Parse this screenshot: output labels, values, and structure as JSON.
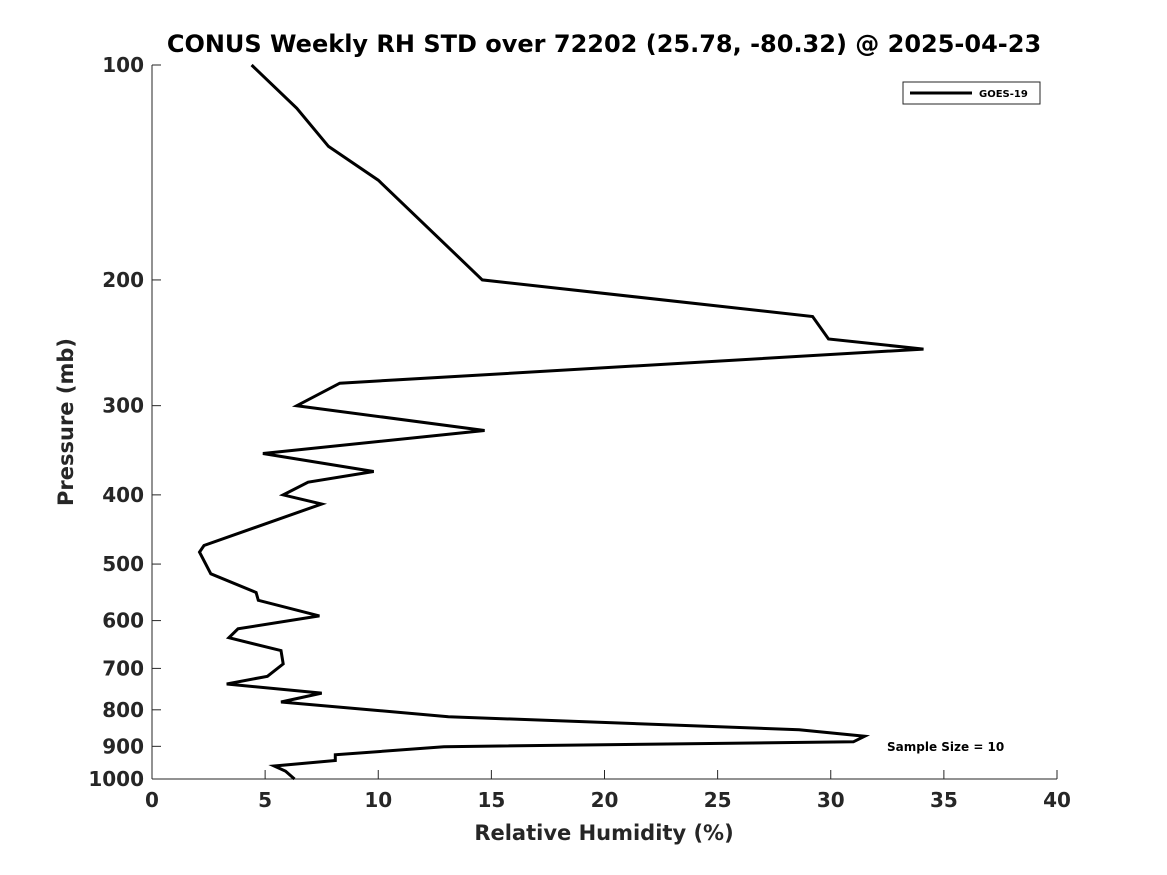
{
  "chart_data": {
    "type": "line",
    "title": "CONUS Weekly RH STD over 72202 (25.78, -80.32) @ 2025-04-23",
    "xlabel": "Relative Humidity (%)",
    "ylabel": "Pressure (mb)",
    "xlim": [
      0,
      40
    ],
    "ylim": [
      1000,
      100
    ],
    "yscale": "log",
    "xticks": [
      0,
      5,
      10,
      15,
      20,
      25,
      30,
      35,
      40
    ],
    "xtick_labels": [
      "0",
      "5",
      "10",
      "15",
      "20",
      "25",
      "30",
      "35",
      "40"
    ],
    "yticks": [
      100,
      200,
      300,
      400,
      500,
      600,
      700,
      800,
      900,
      1000
    ],
    "ytick_labels": [
      "100",
      "200",
      "300",
      "400",
      "500",
      "600",
      "700",
      "800",
      "900",
      "1000"
    ],
    "grid": false,
    "legend_position": "top-right",
    "series": [
      {
        "name": "GOES-19",
        "color": "#000000",
        "x": [
          4.4,
          6.4,
          7.8,
          10.0,
          14.6,
          29.2,
          29.9,
          34.1,
          8.3,
          6.4,
          14.7,
          4.9,
          9.8,
          6.9,
          5.8,
          7.5,
          2.3,
          2.1,
          2.6,
          4.6,
          4.7,
          7.4,
          3.8,
          3.4,
          5.7,
          5.8,
          5.1,
          3.3,
          7.5,
          5.7,
          13.1,
          28.6,
          31.5,
          31.0,
          12.9,
          8.1,
          8.1,
          5.4,
          5.9,
          6.3
        ],
        "y": [
          100,
          115,
          130,
          145,
          200,
          225,
          242,
          250,
          279,
          300,
          325,
          350,
          371,
          384,
          400,
          412,
          471,
          481,
          516,
          548,
          562,
          591,
          616,
          634,
          661,
          690,
          718,
          736,
          758,
          780,
          818,
          853,
          871,
          887,
          901,
          925,
          942,
          959,
          975,
          1000
        ]
      }
    ],
    "annotations": [
      "Sample Size = 10"
    ]
  }
}
